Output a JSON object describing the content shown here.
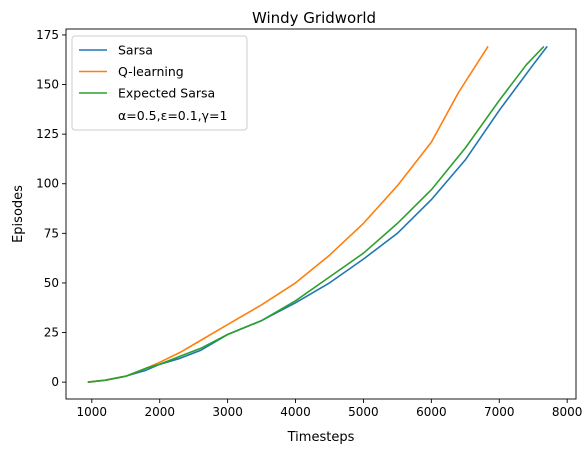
{
  "chart_data": {
    "type": "line",
    "title": "Windy Gridworld",
    "xlabel": "Timesteps",
    "ylabel": "Episodes",
    "xlim": [
      620,
      8130
    ],
    "ylim": [
      -8.5,
      178
    ],
    "xticks": [
      1000,
      2000,
      3000,
      4000,
      5000,
      6000,
      7000,
      8000
    ],
    "yticks": [
      0,
      25,
      50,
      75,
      100,
      125,
      150,
      175
    ],
    "grid": false,
    "legend_position": "top-left",
    "legend_note": "α=0.5,ε=0.1,γ=1",
    "series": [
      {
        "name": "Sarsa",
        "color": "#1f77b4",
        "points": [
          [
            950,
            0
          ],
          [
            1200,
            1
          ],
          [
            1500,
            3
          ],
          [
            1800,
            6
          ],
          [
            2000,
            9
          ],
          [
            2300,
            12
          ],
          [
            2600,
            16
          ],
          [
            3000,
            24
          ],
          [
            3500,
            31
          ],
          [
            4000,
            40
          ],
          [
            4500,
            50
          ],
          [
            5000,
            62
          ],
          [
            5500,
            75
          ],
          [
            6000,
            92
          ],
          [
            6500,
            112
          ],
          [
            7000,
            137
          ],
          [
            7500,
            160
          ],
          [
            7700,
            169
          ]
        ]
      },
      {
        "name": "Q-learning",
        "color": "#ff7f0e",
        "points": [
          [
            950,
            0
          ],
          [
            1200,
            1
          ],
          [
            1500,
            3
          ],
          [
            1800,
            7
          ],
          [
            2000,
            10
          ],
          [
            2300,
            15
          ],
          [
            2600,
            21
          ],
          [
            3000,
            29
          ],
          [
            3500,
            39
          ],
          [
            4000,
            50
          ],
          [
            4500,
            64
          ],
          [
            5000,
            80
          ],
          [
            5500,
            99
          ],
          [
            6000,
            121
          ],
          [
            6400,
            146
          ],
          [
            6830,
            169
          ]
        ]
      },
      {
        "name": "Expected Sarsa",
        "color": "#2ca02c",
        "points": [
          [
            950,
            0
          ],
          [
            1200,
            1
          ],
          [
            1500,
            3
          ],
          [
            1800,
            7
          ],
          [
            2000,
            9
          ],
          [
            2300,
            13
          ],
          [
            2600,
            17
          ],
          [
            3000,
            24
          ],
          [
            3500,
            31
          ],
          [
            4000,
            41
          ],
          [
            4500,
            53
          ],
          [
            5000,
            65
          ],
          [
            5500,
            80
          ],
          [
            6000,
            97
          ],
          [
            6500,
            118
          ],
          [
            7000,
            142
          ],
          [
            7400,
            160
          ],
          [
            7650,
            169
          ]
        ]
      }
    ]
  }
}
